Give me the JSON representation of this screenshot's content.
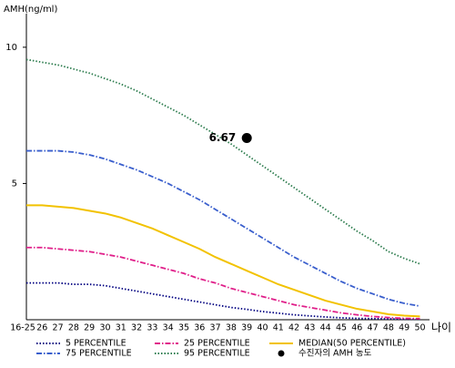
{
  "chart_data": {
    "type": "line",
    "y_label": "AMH(ng/ml)",
    "x_label": "나이",
    "categories": [
      "16-25",
      "26",
      "27",
      "28",
      "29",
      "30",
      "31",
      "32",
      "33",
      "34",
      "35",
      "36",
      "37",
      "38",
      "39",
      "40",
      "41",
      "42",
      "43",
      "44",
      "45",
      "46",
      "47",
      "48",
      "49",
      "50"
    ],
    "ylim": [
      0,
      11.4
    ],
    "yticks": [
      5,
      10
    ],
    "series": [
      {
        "name": "5 PERCENTILE",
        "color": "#000080",
        "dash": "dotted",
        "values": [
          1.35,
          1.35,
          1.35,
          1.3,
          1.3,
          1.25,
          1.15,
          1.05,
          0.95,
          0.85,
          0.75,
          0.65,
          0.55,
          0.45,
          0.38,
          0.3,
          0.24,
          0.18,
          0.14,
          0.1,
          0.07,
          0.05,
          0.04,
          0.03,
          0.02,
          0.02
        ]
      },
      {
        "name": "25 PERCENTILE",
        "color": "#e0208a",
        "dash": "dashdot",
        "values": [
          2.65,
          2.65,
          2.6,
          2.55,
          2.5,
          2.4,
          2.3,
          2.15,
          2.0,
          1.85,
          1.7,
          1.5,
          1.35,
          1.15,
          1.0,
          0.85,
          0.7,
          0.55,
          0.45,
          0.35,
          0.25,
          0.18,
          0.12,
          0.08,
          0.05,
          0.04
        ]
      },
      {
        "name": "MEDIAN(50 PERCENTILE)",
        "color": "#f2c200",
        "dash": "solid",
        "values": [
          4.2,
          4.2,
          4.15,
          4.1,
          4.0,
          3.9,
          3.75,
          3.55,
          3.35,
          3.1,
          2.85,
          2.6,
          2.3,
          2.05,
          1.8,
          1.55,
          1.3,
          1.1,
          0.9,
          0.7,
          0.55,
          0.4,
          0.3,
          0.2,
          0.15,
          0.12
        ]
      },
      {
        "name": "75 PERCENTILE",
        "color": "#3a5fcd",
        "dash": "dashdot",
        "values": [
          6.2,
          6.2,
          6.2,
          6.15,
          6.05,
          5.9,
          5.7,
          5.5,
          5.25,
          5.0,
          4.7,
          4.4,
          4.05,
          3.7,
          3.35,
          3.0,
          2.65,
          2.3,
          2.0,
          1.7,
          1.4,
          1.15,
          0.95,
          0.75,
          0.6,
          0.5
        ]
      },
      {
        "name": "95 PERCENTILE",
        "color": "#2e7d4f",
        "dash": "dotted",
        "values": [
          9.55,
          9.45,
          9.35,
          9.2,
          9.05,
          8.85,
          8.65,
          8.4,
          8.1,
          7.8,
          7.5,
          7.15,
          6.8,
          6.45,
          6.05,
          5.65,
          5.25,
          4.85,
          4.45,
          4.05,
          3.65,
          3.25,
          2.9,
          2.5,
          2.25,
          2.05
        ]
      }
    ],
    "point": {
      "name": "수진자의 AMH 농도",
      "color": "#000000",
      "category": "39",
      "value": 6.67
    }
  }
}
